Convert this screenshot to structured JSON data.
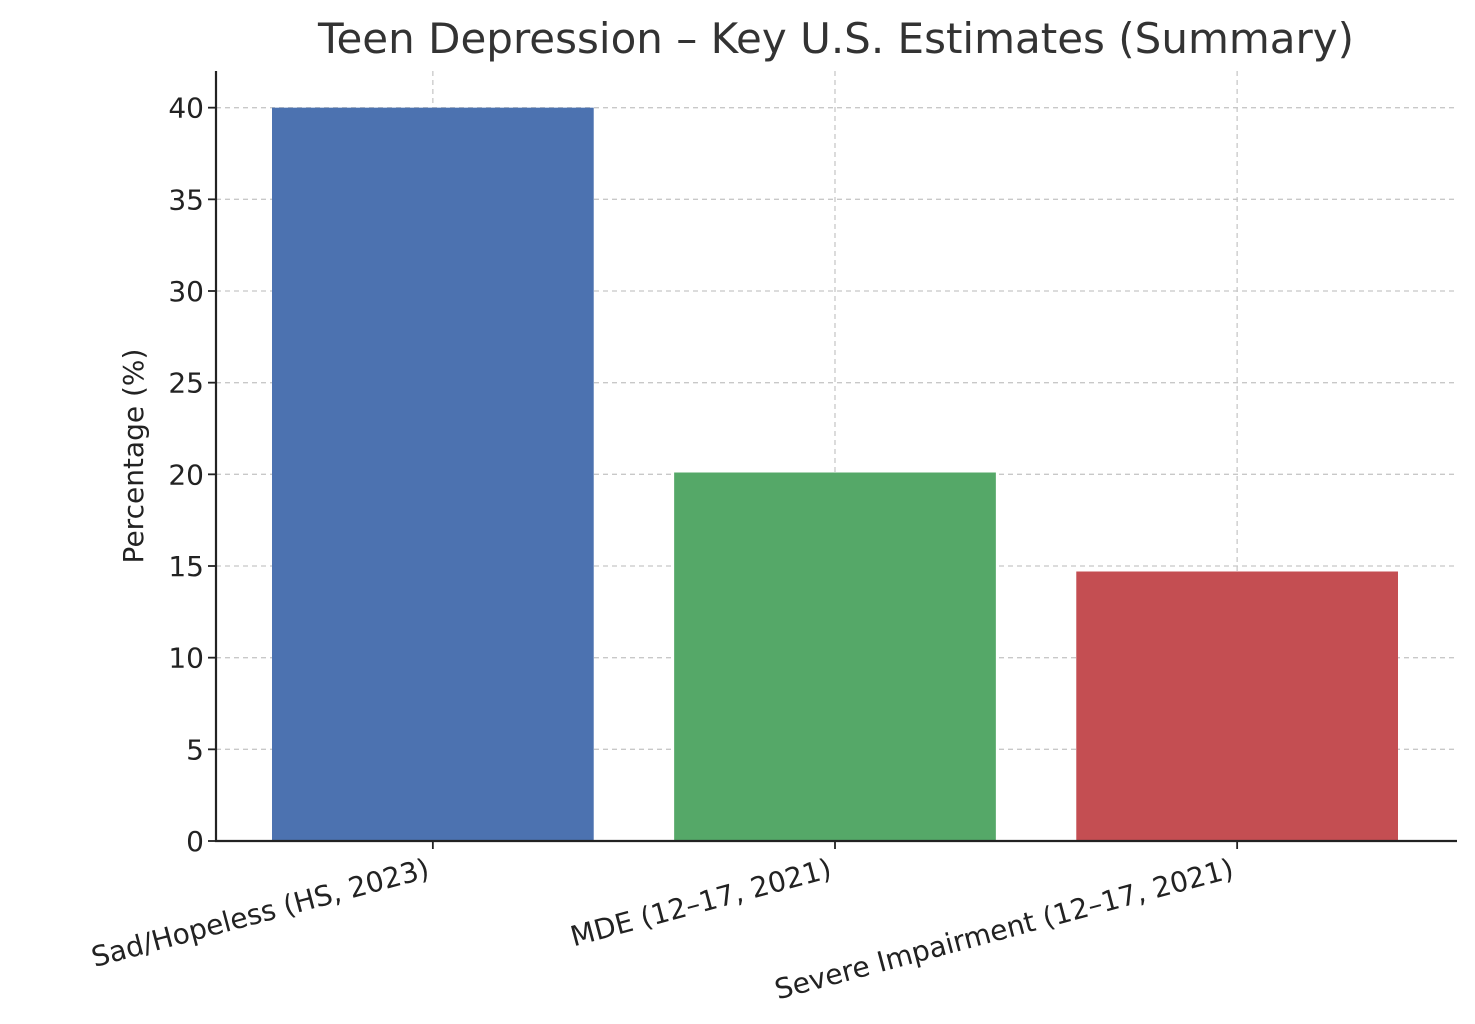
{
  "chart_data": {
    "type": "bar",
    "title": "Teen Depression – Key U.S. Estimates (Summary)",
    "xlabel": "",
    "ylabel": "Percentage (%)",
    "categories": [
      "Sad/Hopeless (HS, 2023)",
      "MDE (12–17, 2021)",
      "Severe Impairment (12–17, 2021)"
    ],
    "values": [
      40,
      20.1,
      14.7
    ],
    "colors": [
      "#4c72b0",
      "#55a868",
      "#c44e52"
    ],
    "ylim": [
      0,
      42
    ],
    "yticks": [
      0,
      5,
      10,
      15,
      20,
      25,
      30,
      35,
      40
    ],
    "grid": true,
    "legend": "none"
  }
}
